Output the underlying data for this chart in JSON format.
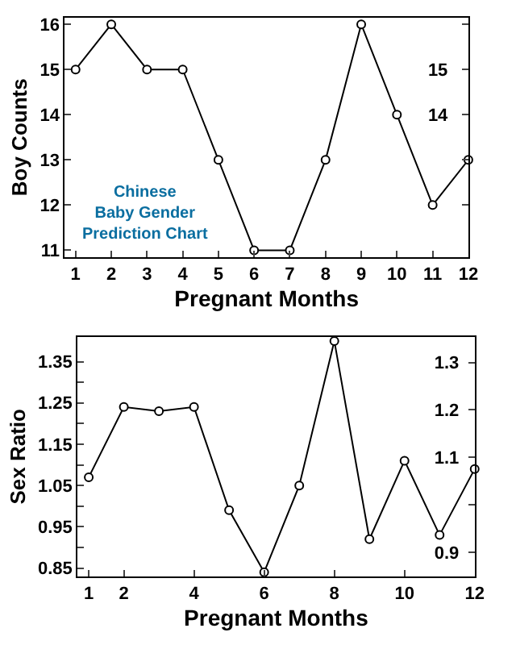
{
  "chart_data": [
    {
      "type": "line",
      "xlabel": "Pregnant Months",
      "ylabel": "Boy Counts",
      "x": [
        1,
        2,
        3,
        4,
        5,
        6,
        7,
        8,
        9,
        10,
        11,
        12
      ],
      "series": [
        {
          "color": "#000000",
          "values": [
            15,
            16,
            15,
            15,
            13,
            11,
            11,
            13,
            16,
            14,
            12,
            13
          ]
        }
      ],
      "xlim": [
        0.7,
        12
      ],
      "xticks": [
        1,
        2,
        3,
        4,
        5,
        6,
        7,
        8,
        9,
        10,
        11,
        12
      ],
      "ylim": [
        10.85,
        16.15
      ],
      "yticks": [
        11,
        12,
        13,
        14,
        15,
        16
      ],
      "y2lim": [
        10.85,
        16.15
      ],
      "y2ticks": [
        {
          "value": 12,
          "label": null
        },
        {
          "value": 13,
          "label": null
        },
        14,
        15,
        {
          "value": 16,
          "label": null
        }
      ],
      "annotations": [
        "Chinese\nBaby Gender\nPrediction Chart"
      ],
      "marker": "circle",
      "line_style": "solid"
    },
    {
      "type": "line",
      "xlabel": "Pregnant Months",
      "ylabel": "Sex Ratio",
      "x": [
        1,
        2,
        3,
        4,
        5,
        6,
        7,
        8,
        9,
        10,
        11,
        12
      ],
      "series": [
        {
          "color": "#000000",
          "values": [
            1.07,
            1.24,
            1.23,
            1.24,
            0.99,
            0.84,
            1.05,
            1.4,
            0.92,
            1.11,
            0.93,
            1.09
          ]
        }
      ],
      "xlim": [
        0.68,
        12
      ],
      "xticks": [
        1,
        2,
        4,
        6,
        8,
        10,
        12
      ],
      "ylim": [
        0.83,
        1.41
      ],
      "yticks": [
        0.85,
        {
          "value": 0.9,
          "label": null
        },
        0.95,
        {
          "value": 1.0,
          "label": null
        },
        1.05,
        {
          "value": 1.1,
          "label": null
        },
        1.15,
        {
          "value": 1.2,
          "label": null
        },
        1.25,
        {
          "value": 1.3,
          "label": null
        },
        1.35
      ],
      "y2lim": [
        0.849,
        1.354
      ],
      "y2ticks": [
        0.9,
        {
          "value": 1.0,
          "label": null
        },
        1.1,
        1.2,
        1.3
      ],
      "marker": "circle",
      "line_style": "solid"
    }
  ]
}
